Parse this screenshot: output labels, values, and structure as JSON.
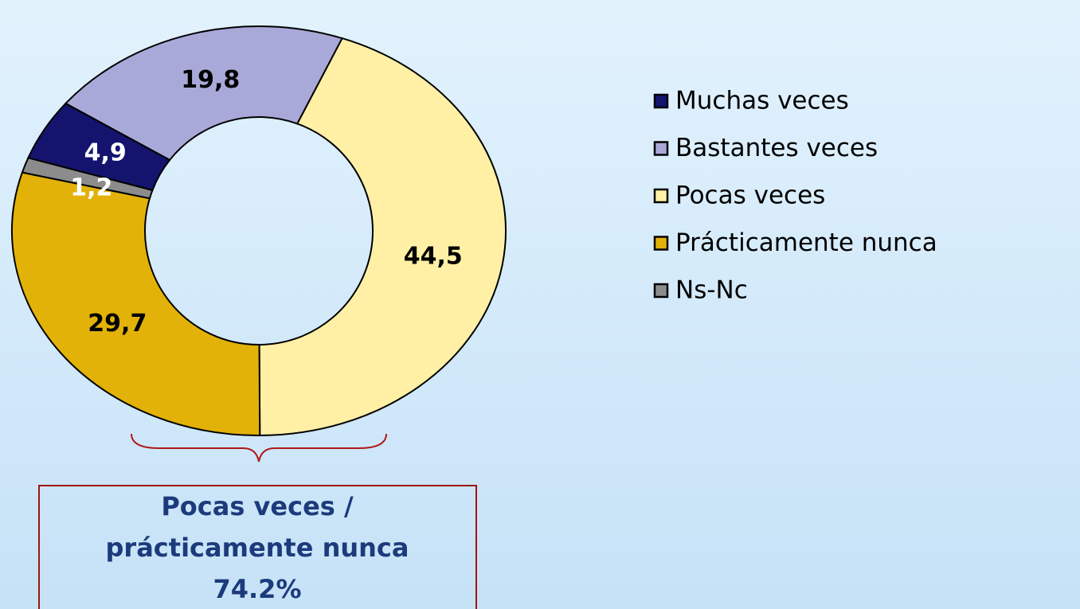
{
  "chart_data": {
    "type": "donut",
    "categories": [
      "Muchas veces",
      "Bastantes veces",
      "Pocas veces",
      "Prácticamente nunca",
      "Ns-Nc"
    ],
    "values": [
      4.9,
      19.8,
      44.5,
      29.7,
      1.2
    ],
    "value_labels": [
      "4,9",
      "19,8",
      "44,5",
      "29,7",
      "1,2"
    ],
    "colors": [
      "#14146e",
      "#a9a9d9",
      "#fff0a6",
      "#e2b208",
      "#8c8c8c"
    ],
    "label_colors": [
      "#ffffff",
      "#000000",
      "#000000",
      "#000000",
      "#ffffff"
    ],
    "legend": "right",
    "annotation": [
      "Pocas veces /",
      "prácticamente nunca",
      "74.2%"
    ]
  }
}
